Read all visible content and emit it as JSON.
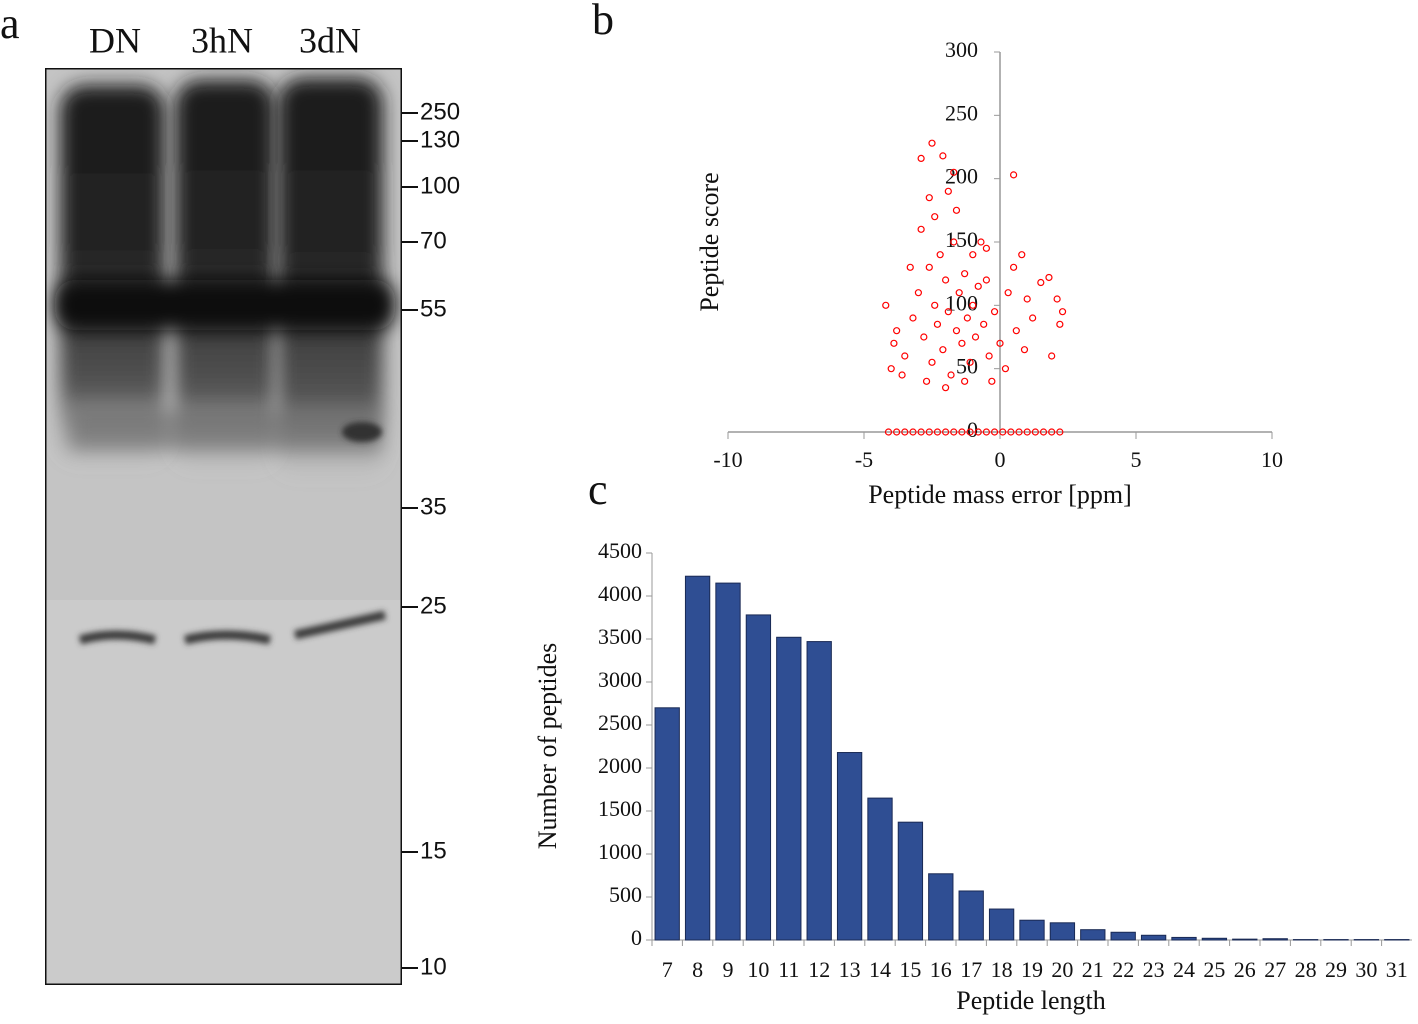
{
  "panels": {
    "a": "a",
    "b": "b",
    "c": "c"
  },
  "blot": {
    "lanes": [
      "DN",
      "3hN",
      "3dN"
    ],
    "markers": [
      250,
      130,
      100,
      70,
      55,
      35,
      25,
      15,
      10
    ]
  },
  "chart_data": [
    {
      "type": "scatter",
      "x_label": "Peptide mass error [ppm]",
      "y_label": "Peptide score",
      "color": "#ff0000",
      "x": [
        -4.1,
        -3.8,
        -3.5,
        -3.2,
        -2.9,
        -2.6,
        -2.3,
        -2.0,
        -1.7,
        -1.4,
        -1.1,
        -0.8,
        -0.5,
        -0.2,
        0.1,
        0.4,
        0.7,
        1.0,
        1.3,
        1.6,
        1.9,
        2.2,
        -3.5,
        -3.2,
        -3.0,
        -2.8,
        -2.6,
        -2.5,
        -2.4,
        -2.3,
        -2.2,
        -2.1,
        -2.0,
        -1.9,
        -1.8,
        -1.7,
        -1.6,
        -1.5,
        -1.4,
        -1.3,
        -1.2,
        -1.1,
        -1.0,
        -0.9,
        -0.8,
        -0.6,
        -0.4,
        -0.2,
        0.0,
        0.3,
        0.6,
        0.9,
        1.2,
        -3.8,
        -3.6,
        -3.3,
        -2.9,
        -2.7,
        -2.4,
        -2.0,
        -1.6,
        -1.3,
        -1.0,
        -0.7,
        -0.5,
        -0.3,
        0.2,
        0.5,
        1.0,
        -2.5,
        -2.1,
        -2.9,
        0.5,
        -1.7,
        -1.9,
        -2.6,
        1.5,
        1.8,
        2.1,
        2.3,
        1.9,
        2.2,
        -4.0,
        -4.2,
        -3.9,
        -0.5,
        0.8
      ],
      "values": [
        0,
        0,
        0,
        0,
        0,
        0,
        0,
        0,
        0,
        0,
        0,
        0,
        0,
        0,
        0,
        0,
        0,
        0,
        0,
        0,
        0,
        0,
        60,
        90,
        110,
        75,
        130,
        55,
        100,
        85,
        140,
        65,
        120,
        95,
        45,
        150,
        80,
        110,
        70,
        125,
        90,
        55,
        100,
        75,
        115,
        85,
        60,
        95,
        70,
        110,
        80,
        65,
        90,
        80,
        45,
        130,
        160,
        40,
        170,
        35,
        175,
        40,
        140,
        150,
        120,
        40,
        50,
        130,
        105,
        228,
        218,
        216,
        203,
        205,
        190,
        185,
        118,
        122,
        105,
        95,
        60,
        85,
        50,
        100,
        70,
        145,
        140
      ],
      "xlim": [
        -10,
        10
      ],
      "ylim": [
        0,
        300
      ],
      "xticks": [
        -10,
        -5,
        0,
        5,
        10
      ],
      "yticks": [
        0,
        50,
        100,
        150,
        200,
        250,
        300
      ]
    },
    {
      "type": "bar",
      "x_label": "Peptide length",
      "y_label": "Number of peptides",
      "color": "#2f4e93",
      "categories": [
        "7",
        "8",
        "9",
        "10",
        "11",
        "12",
        "13",
        "14",
        "15",
        "16",
        "17",
        "18",
        "19",
        "20",
        "21",
        "22",
        "23",
        "24",
        "25",
        "26",
        "27",
        "28",
        "29",
        "30",
        "31"
      ],
      "values": [
        2700,
        4230,
        4150,
        3780,
        3520,
        3470,
        2180,
        1650,
        1370,
        770,
        570,
        360,
        230,
        200,
        120,
        90,
        55,
        30,
        20,
        10,
        15,
        5,
        5,
        5,
        5
      ],
      "ylim": [
        0,
        4500
      ],
      "yticks": [
        0,
        500,
        1000,
        1500,
        2000,
        2500,
        3000,
        3500,
        4000,
        4500
      ]
    }
  ]
}
